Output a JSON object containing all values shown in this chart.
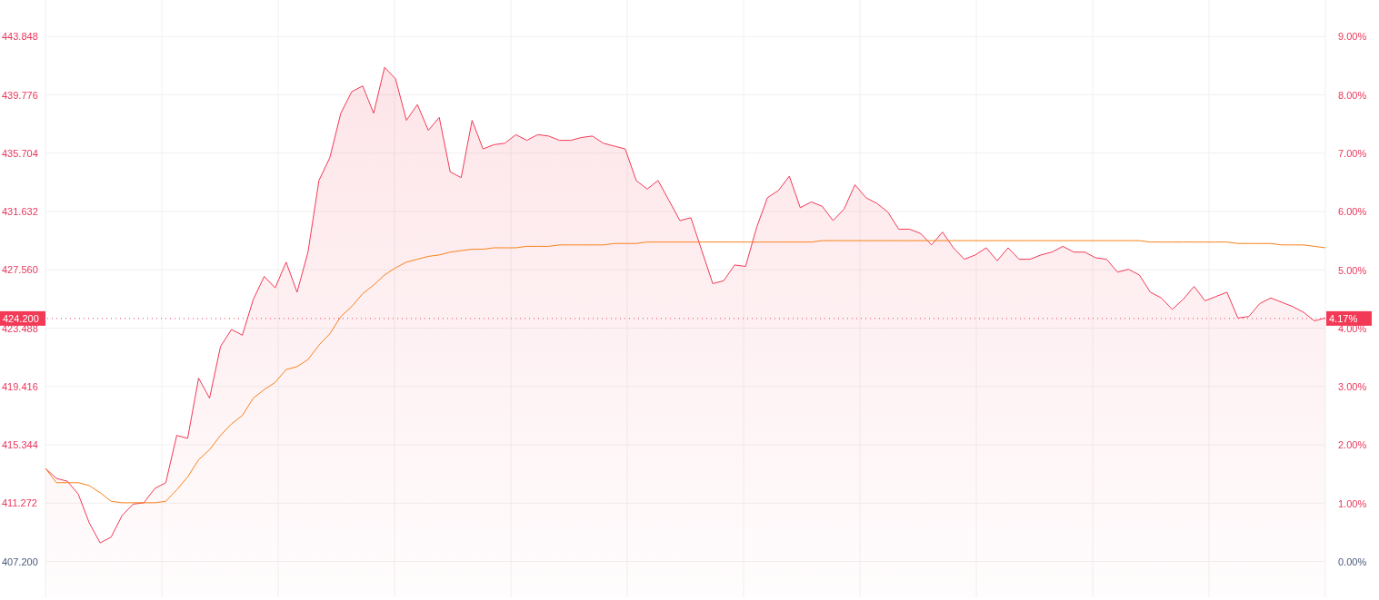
{
  "chart_data": {
    "type": "area",
    "categories": [
      null,
      null,
      null,
      null,
      null,
      null,
      null,
      null,
      null,
      null,
      null,
      null,
      null,
      null,
      null,
      null,
      null,
      null,
      null,
      null,
      null,
      null,
      null,
      null,
      null,
      null,
      null,
      null,
      null,
      null,
      null,
      null,
      null,
      null,
      null,
      null,
      null,
      null,
      null,
      null,
      null,
      null,
      null,
      null,
      null,
      null,
      null,
      null,
      null,
      null,
      null,
      null,
      null,
      null,
      null,
      null,
      null,
      null,
      null,
      null,
      null,
      null,
      null,
      null,
      null,
      null,
      null,
      null,
      null,
      null,
      null,
      null,
      null,
      null,
      null,
      null,
      null,
      null,
      null,
      null,
      null,
      null,
      null,
      null,
      null,
      null,
      null,
      null,
      null,
      null,
      null,
      null,
      null,
      null,
      null,
      null,
      null,
      null,
      null,
      null,
      null,
      null,
      null,
      null,
      null,
      null,
      null,
      null,
      null,
      null,
      null,
      null,
      null,
      null,
      null,
      null,
      null,
      null
    ],
    "series": [
      {
        "color": "#f23a57",
        "values": [
          413.7,
          413.0,
          412.8,
          411.9,
          409.9,
          408.5,
          408.9,
          410.4,
          411.2,
          411.3,
          412.3,
          412.7,
          416.0,
          415.8,
          420.0,
          418.6,
          422.2,
          423.4,
          423.0,
          425.5,
          427.1,
          426.3,
          428.1,
          426.0,
          428.8,
          433.8,
          435.4,
          438.5,
          440.0,
          440.4,
          438.5,
          441.7,
          440.9,
          438.0,
          439.1,
          437.3,
          438.2,
          434.4,
          434.0,
          438.0,
          436.0,
          436.3,
          436.4,
          437.0,
          436.6,
          437.0,
          436.9,
          436.6,
          436.6,
          436.8,
          436.9,
          436.4,
          436.2,
          436.0,
          433.8,
          433.2,
          433.8,
          432.4,
          431.0,
          431.2,
          428.9,
          426.6,
          426.8,
          427.9,
          427.8,
          430.5,
          432.6,
          433.1,
          434.1,
          431.9,
          432.3,
          432.0,
          431.0,
          431.8,
          433.5,
          432.6,
          432.2,
          431.6,
          430.4,
          430.4,
          430.1,
          429.3,
          430.2,
          429.1,
          428.3,
          428.6,
          429.1,
          428.2,
          429.1,
          428.3,
          428.3,
          428.6,
          428.8,
          429.2,
          428.8,
          428.8,
          428.4,
          428.3,
          427.4,
          427.6,
          427.2,
          426.0,
          425.6,
          424.8,
          425.5,
          426.4,
          425.4,
          425.7,
          426.0,
          424.2,
          424.3,
          425.2,
          425.6,
          425.3,
          425.0,
          424.6,
          424.0,
          424.2
        ]
      },
      {
        "type": "line",
        "color": "#f7821b",
        "values": [
          413.7,
          412.7,
          412.7,
          412.7,
          412.5,
          412.0,
          411.4,
          411.3,
          411.3,
          411.3,
          411.3,
          411.4,
          412.2,
          413.1,
          414.3,
          415.0,
          416.0,
          416.8,
          417.4,
          418.6,
          419.2,
          419.7,
          420.6,
          420.8,
          421.3,
          422.3,
          423.1,
          424.3,
          425.0,
          425.9,
          426.5,
          427.2,
          427.7,
          428.1,
          428.3,
          428.5,
          428.6,
          428.8,
          428.9,
          429.0,
          429.0,
          429.1,
          429.1,
          429.1,
          429.2,
          429.2,
          429.2,
          429.3,
          429.3,
          429.3,
          429.3,
          429.3,
          429.4,
          429.4,
          429.4,
          429.5,
          429.5,
          429.5,
          429.5,
          429.5,
          429.5,
          429.5,
          429.5,
          429.5,
          429.5,
          429.5,
          429.5,
          429.5,
          429.5,
          429.5,
          429.5,
          429.6,
          429.6,
          429.6,
          429.6,
          429.6,
          429.6,
          429.6,
          429.6,
          429.6,
          429.6,
          429.6,
          429.6,
          429.6,
          429.6,
          429.6,
          429.6,
          429.6,
          429.6,
          429.6,
          429.6,
          429.6,
          429.6,
          429.6,
          429.6,
          429.6,
          429.6,
          429.6,
          429.6,
          429.6,
          429.6,
          429.5,
          429.5,
          429.5,
          429.5,
          429.5,
          429.5,
          429.5,
          429.5,
          429.4,
          429.4,
          429.4,
          429.4,
          429.3,
          429.3,
          429.3,
          429.2,
          429.1
        ]
      }
    ],
    "ylim": [
      404.7,
      446.4
    ],
    "yticks": [
      {
        "value": 407.2,
        "label": "407.200"
      },
      411.272,
      415.344,
      419.416,
      423.488,
      {
        "value": 427.56,
        "label": "427.560"
      },
      431.632,
      435.704,
      439.776,
      443.848
    ],
    "y2lim": [
      -0.61,
      9.63
    ],
    "y2ticks": [
      {
        "value": 0,
        "label": "0.00%"
      },
      {
        "value": 1,
        "label": "1.00%"
      },
      {
        "value": 2,
        "label": "2.00%"
      },
      {
        "value": 3,
        "label": "3.00%"
      },
      {
        "value": 4,
        "label": "4.00%"
      },
      {
        "value": 5,
        "label": "5.00%"
      },
      {
        "value": 6,
        "label": "6.00%"
      },
      {
        "value": 7,
        "label": "7.00%"
      },
      {
        "value": 8,
        "label": "8.00%"
      },
      {
        "value": 9,
        "label": "9.00%"
      }
    ],
    "ref_lines": [
      {
        "axis": "y2",
        "value": 4.17,
        "label": "4.17%",
        "color": "#f23a57",
        "line_style": "dotted"
      }
    ],
    "annotations": [
      "424.200"
    ],
    "grid": true,
    "marker": "none",
    "line_style": "solid",
    "tick_labels": "y"
  }
}
